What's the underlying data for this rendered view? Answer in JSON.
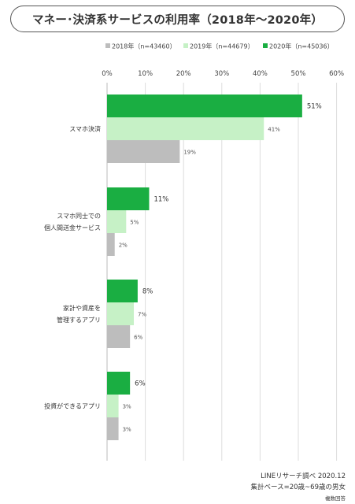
{
  "title": "マネー･決済系サービスの利用率（2018年～2020年）",
  "footer": {
    "source": "LINEリサーチ調べ 2020.12",
    "base": "集計ベース=20歳~69歳の男女",
    "note": "複数回答"
  },
  "colors": {
    "s2018": "#bdbdbd",
    "s2019": "#c6f1c6",
    "s2020": "#1aae42",
    "grid": "#dddddd"
  },
  "chart_data": {
    "type": "bar",
    "orientation": "horizontal",
    "categories": [
      [
        "スマホ決済"
      ],
      [
        "スマホ同士での",
        "個人間送金サービス"
      ],
      [
        "家計や資産を",
        "管理するアプリ"
      ],
      [
        "投資ができるアプリ"
      ]
    ],
    "series": [
      {
        "name": "2020年（n=45036）",
        "values": [
          51,
          11,
          8,
          6
        ],
        "labels": [
          "51%",
          "11%",
          "8%",
          "6%"
        ],
        "color": "#1aae42"
      },
      {
        "name": "2019年（n=44679）",
        "values": [
          41,
          5,
          7,
          3
        ],
        "labels": [
          "41%",
          "5%",
          "7%",
          "3%"
        ],
        "color": "#c6f1c6"
      },
      {
        "name": "2018年（n=43460）",
        "values": [
          19,
          2,
          6,
          3
        ],
        "labels": [
          "19%",
          "2%",
          "6%",
          "3%"
        ],
        "color": "#bdbdbd"
      }
    ],
    "legend_order": [
      "2018年（n=43460）",
      "2019年（n=44679）",
      "2020年（n=45036）"
    ],
    "ticks": [
      "0%",
      "10%",
      "20%",
      "30%",
      "40%",
      "50%",
      "60%"
    ],
    "xlim": [
      0,
      60
    ],
    "grid": true,
    "legend_position": "top-right"
  }
}
